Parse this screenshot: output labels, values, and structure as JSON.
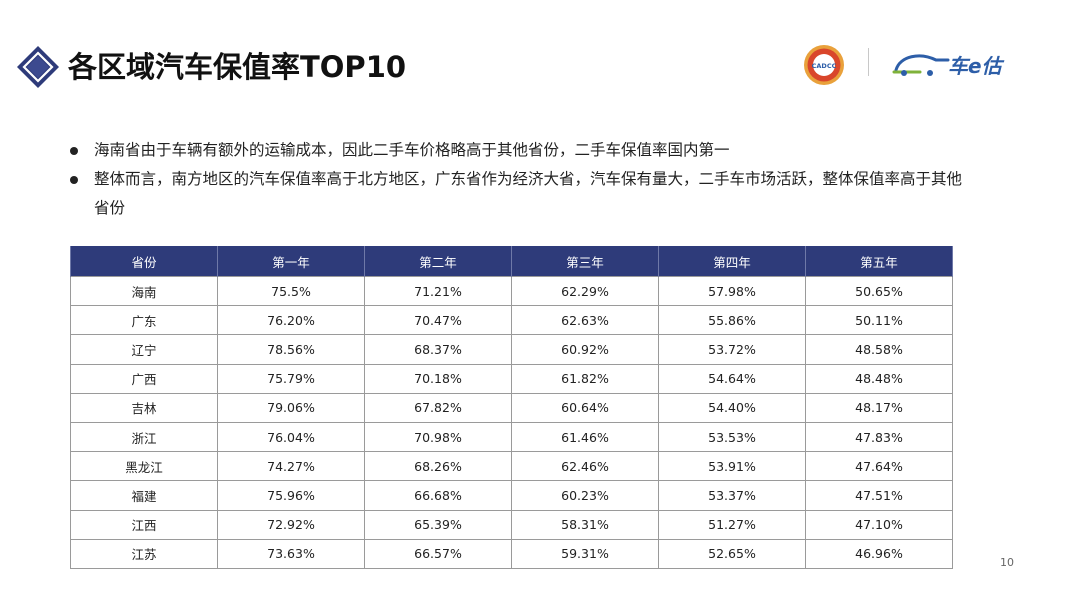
{
  "header": {
    "title": "各区域汽车保值率TOP10",
    "logos": {
      "cadcc_text": "CADCC",
      "brand_text": "车e估"
    }
  },
  "bullets": [
    "海南省由于车辆有额外的运输成本，因此二手车价格略高于其他省份，二手车保值率国内第一",
    "整体而言，南方地区的汽车保值率高于北方地区，广东省作为经济大省，汽车保有量大，二手车市场活跃，整体保值率高于其他省份"
  ],
  "table": {
    "headers": [
      "省份",
      "第一年",
      "第二年",
      "第三年",
      "第四年",
      "第五年"
    ],
    "rows": [
      [
        "海南",
        "75.5%",
        "71.21%",
        "62.29%",
        "57.98%",
        "50.65%"
      ],
      [
        "广东",
        "76.20%",
        "70.47%",
        "62.63%",
        "55.86%",
        "50.11%"
      ],
      [
        "辽宁",
        "78.56%",
        "68.37%",
        "60.92%",
        "53.72%",
        "48.58%"
      ],
      [
        "广西",
        "75.79%",
        "70.18%",
        "61.82%",
        "54.64%",
        "48.48%"
      ],
      [
        "吉林",
        "79.06%",
        "67.82%",
        "60.64%",
        "54.40%",
        "48.17%"
      ],
      [
        "浙江",
        "76.04%",
        "70.98%",
        "61.46%",
        "53.53%",
        "47.83%"
      ],
      [
        "黑龙江",
        "74.27%",
        "68.26%",
        "62.46%",
        "53.91%",
        "47.64%"
      ],
      [
        "福建",
        "75.96%",
        "66.68%",
        "60.23%",
        "53.37%",
        "47.51%"
      ],
      [
        "江西",
        "72.92%",
        "65.39%",
        "58.31%",
        "51.27%",
        "47.10%"
      ],
      [
        "江苏",
        "73.63%",
        "66.57%",
        "59.31%",
        "52.65%",
        "46.96%"
      ]
    ]
  },
  "page_number": "10",
  "colors": {
    "accent": "#2e3b7a",
    "brand_blue": "#2d5ea8",
    "cadcc_red": "#d9462b"
  }
}
